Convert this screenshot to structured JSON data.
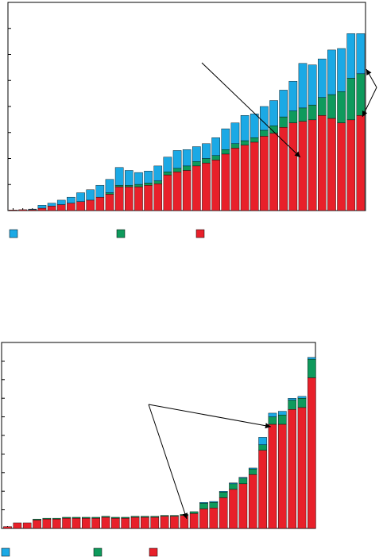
{
  "colors": {
    "seg_a": "#1ba9e5",
    "seg_b": "#0e9a5c",
    "seg_c": "#e8202a"
  },
  "chart_data": [
    {
      "type": "bar",
      "stacked": true,
      "title": "",
      "xlabel": "",
      "ylabel": "",
      "ylim": [
        0,
        7
      ],
      "grid": false,
      "legend": "bottom",
      "series": [
        {
          "color": "#e8202a",
          "values": [
            0.02,
            0.03,
            0.03,
            0.08,
            0.15,
            0.2,
            0.25,
            0.3,
            0.35,
            0.45,
            0.55,
            0.8,
            0.8,
            0.8,
            0.85,
            0.9,
            1.2,
            1.3,
            1.35,
            1.5,
            1.6,
            1.7,
            1.9,
            2.1,
            2.2,
            2.3,
            2.5,
            2.6,
            2.8,
            2.95,
            3.0,
            3.05,
            3.2,
            3.1,
            2.95,
            3.05,
            3.2
          ]
        },
        {
          "color": "#0e9a5c",
          "values": [
            0,
            0,
            0,
            0,
            0,
            0,
            0,
            0,
            0,
            0,
            0.05,
            0.05,
            0.05,
            0.08,
            0.08,
            0.1,
            0.1,
            0.12,
            0.15,
            0.15,
            0.15,
            0.15,
            0.15,
            0.15,
            0.15,
            0.15,
            0.2,
            0.25,
            0.35,
            0.4,
            0.45,
            0.5,
            0.6,
            0.8,
            1.05,
            1.4,
            1.4
          ]
        },
        {
          "color": "#1ba9e5",
          "values": [
            0,
            0,
            0.02,
            0.1,
            0.1,
            0.15,
            0.2,
            0.3,
            0.35,
            0.4,
            0.45,
            0.6,
            0.5,
            0.4,
            0.4,
            0.5,
            0.5,
            0.6,
            0.55,
            0.5,
            0.5,
            0.6,
            0.7,
            0.7,
            0.85,
            0.8,
            0.8,
            0.85,
            0.9,
            1.0,
            1.5,
            1.35,
            1.3,
            1.5,
            1.45,
            1.5,
            1.35
          ]
        }
      ]
    },
    {
      "type": "bar",
      "stacked": true,
      "title": "",
      "xlabel": "",
      "ylabel": "",
      "ylim": [
        0,
        10
      ],
      "grid": false,
      "legend": "bottom",
      "series": [
        {
          "color": "#e8202a",
          "values": [
            0.1,
            0.3,
            0.3,
            0.45,
            0.5,
            0.5,
            0.55,
            0.55,
            0.55,
            0.55,
            0.6,
            0.55,
            0.55,
            0.6,
            0.6,
            0.6,
            0.65,
            0.65,
            0.7,
            0.8,
            1.05,
            1.1,
            1.65,
            2.1,
            2.4,
            2.9,
            4.2,
            5.6,
            5.6,
            6.4,
            6.5,
            8.1
          ]
        },
        {
          "color": "#0e9a5c",
          "values": [
            0,
            0,
            0,
            0.05,
            0.05,
            0.05,
            0.05,
            0.05,
            0.05,
            0.05,
            0.05,
            0.05,
            0.05,
            0.05,
            0.05,
            0.05,
            0.05,
            0.05,
            0.05,
            0.1,
            0.3,
            0.3,
            0.3,
            0.3,
            0.3,
            0.3,
            0.3,
            0.4,
            0.5,
            0.5,
            0.5,
            1.0
          ]
        },
        {
          "color": "#1ba9e5",
          "values": [
            0,
            0,
            0,
            0,
            0,
            0,
            0,
            0,
            0,
            0,
            0,
            0,
            0,
            0,
            0,
            0,
            0,
            0,
            0,
            0,
            0.05,
            0.05,
            0.05,
            0.05,
            0.05,
            0.05,
            0.4,
            0.2,
            0.2,
            0.1,
            0.1,
            0.1
          ]
        }
      ]
    }
  ]
}
